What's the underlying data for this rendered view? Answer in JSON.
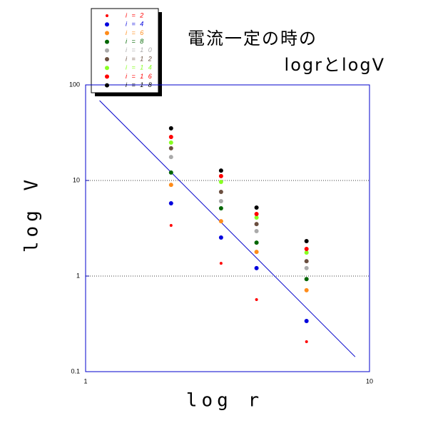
{
  "chart_data": {
    "type": "scatter",
    "title_lines": [
      "電流一定の時の",
      "logrとlogV"
    ],
    "x_label": "log r",
    "y_label": "log V",
    "x": [
      2,
      3,
      4,
      6
    ],
    "series": [
      {
        "name": "i = 2",
        "color": "#ff0000",
        "values": [
          3.39,
          1.36,
          0.567,
          0.206
        ]
      },
      {
        "name": "i = 4",
        "color": "#0000dd",
        "values": [
          5.77,
          2.53,
          1.21,
          0.339
        ]
      },
      {
        "name": "i = 6",
        "color": "#ff8c1a",
        "values": [
          9.0,
          3.75,
          1.79,
          0.71
        ]
      },
      {
        "name": "i = 8",
        "color": "#006600",
        "values": [
          12.1,
          5.12,
          2.24,
          0.93
        ]
      },
      {
        "name": "i = 1 0",
        "color": "#aaaaaa",
        "values": [
          17.6,
          6.08,
          2.95,
          1.21
        ]
      },
      {
        "name": "i = 1 2",
        "color": "#6b4f3f",
        "values": [
          21.7,
          7.6,
          3.5,
          1.43
        ]
      },
      {
        "name": "i = 1 4",
        "color": "#88ff22",
        "values": [
          24.9,
          9.67,
          4.09,
          1.76
        ]
      },
      {
        "name": "i = 1 6",
        "color": "#ff0000",
        "values": [
          28.5,
          11.1,
          4.46,
          1.92
        ]
      },
      {
        "name": "i = 1 8",
        "color": "#000000",
        "values": [
          35.1,
          12.7,
          5.2,
          2.32
        ]
      }
    ],
    "fit_line": {
      "color": "#0000cc",
      "x": [
        1.12,
        8.9
      ],
      "values": [
        68.5,
        0.143
      ]
    },
    "xlim": [
      1,
      10
    ],
    "xticks": [
      1,
      10
    ],
    "ylim": [
      0.1,
      100
    ],
    "yticks": [
      0.1,
      1,
      10,
      100
    ],
    "xscale": "log",
    "yscale": "log",
    "grid": true,
    "legend": "upper left",
    "axis_color": "#0000cc"
  }
}
